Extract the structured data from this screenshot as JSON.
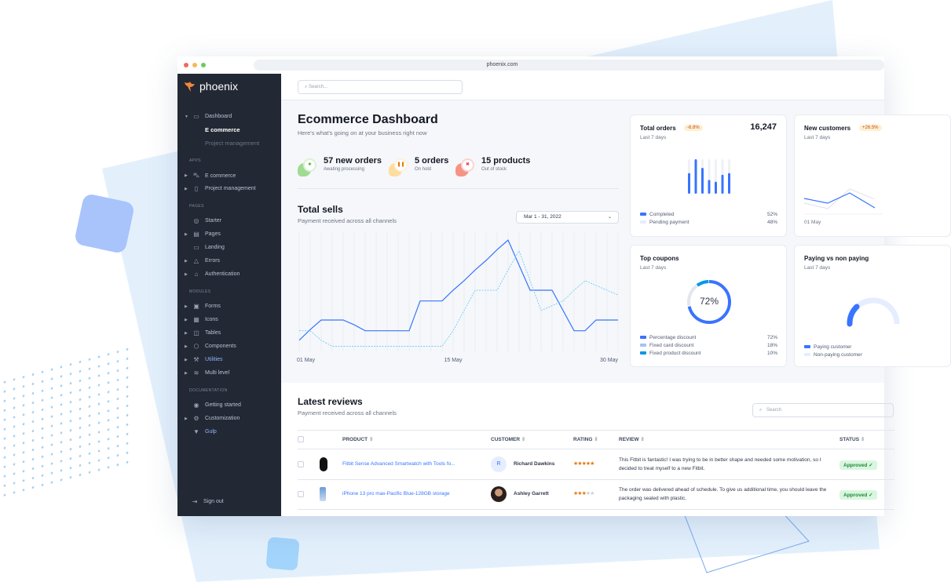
{
  "browser": {
    "url": "phoenix.com"
  },
  "brand": {
    "name": "phoenix",
    "accent": "#3874ff"
  },
  "search": {
    "placeholder": "Search..."
  },
  "sidebar": [
    {
      "type": "item",
      "label": "Dashboard",
      "icon": "monitor-icon",
      "caret": "down"
    },
    {
      "type": "sub",
      "label": "E commerce",
      "active": true
    },
    {
      "type": "sub",
      "label": "Project management"
    },
    {
      "type": "section",
      "label": "APPS"
    },
    {
      "type": "item",
      "label": "E commerce",
      "icon": "cart-icon",
      "caret": "right"
    },
    {
      "type": "item",
      "label": "Project management",
      "icon": "clipboard-icon",
      "caret": "right"
    },
    {
      "type": "section",
      "label": "PAGES"
    },
    {
      "type": "item",
      "label": "Starter",
      "icon": "compass-icon"
    },
    {
      "type": "item",
      "label": "Pages",
      "icon": "layout-icon",
      "caret": "right"
    },
    {
      "type": "item",
      "label": "Landing",
      "icon": "screen-icon"
    },
    {
      "type": "item",
      "label": "Errors",
      "icon": "alert-icon",
      "caret": "right"
    },
    {
      "type": "item",
      "label": "Authentication",
      "icon": "lock-icon",
      "caret": "right"
    },
    {
      "type": "section",
      "label": "MODULES"
    },
    {
      "type": "item",
      "label": "Forms",
      "icon": "file-icon",
      "caret": "right"
    },
    {
      "type": "item",
      "label": "Icons",
      "icon": "grid-icon",
      "caret": "right"
    },
    {
      "type": "item",
      "label": "Tables",
      "icon": "table-icon",
      "caret": "right"
    },
    {
      "type": "item",
      "label": "Components",
      "icon": "package-icon",
      "caret": "right"
    },
    {
      "type": "item",
      "label": "Utilities",
      "icon": "tool-icon",
      "caret": "right",
      "blue": true
    },
    {
      "type": "item",
      "label": "Multi level",
      "icon": "layers-icon",
      "caret": "right"
    },
    {
      "type": "section",
      "label": "DOCUMENTATION"
    },
    {
      "type": "item",
      "label": "Getting started",
      "icon": "life-buoy-icon"
    },
    {
      "type": "item",
      "label": "Customization",
      "icon": "settings-icon",
      "caret": "right"
    },
    {
      "type": "item",
      "label": "Gulp",
      "icon": "gulp-icon",
      "blue": true
    }
  ],
  "signout": "Sign out",
  "header": {
    "title": "Ecommerce Dashboard",
    "subtitle": "Here's what's going on at your business right now"
  },
  "stats": [
    {
      "value": "57 new orders",
      "label": "Awating processing",
      "icon": "star-icon",
      "color": "#25b003",
      "bg": "#90d67f"
    },
    {
      "value": "5 orders",
      "label": "On hold",
      "icon": "pause-icon",
      "color": "#e5780b",
      "bg": "#ffd88e"
    },
    {
      "value": "15 products",
      "label": "Out of stock",
      "icon": "x-icon",
      "color": "#e63757",
      "bg": "#f48270"
    }
  ],
  "total_sells": {
    "title": "Total sells",
    "subtitle": "Payment received across all channels",
    "date_range": "Mar 1 - 31, 2022",
    "x_ticks": [
      "01 May",
      "15 May",
      "30 May"
    ]
  },
  "chart_data": [
    {
      "type": "line",
      "title": "Total sells",
      "x": [
        1,
        2,
        3,
        4,
        5,
        6,
        7,
        8,
        9,
        10,
        11,
        12,
        13,
        14,
        15,
        16,
        17,
        18,
        19,
        20,
        21,
        22,
        23,
        24,
        25,
        26,
        27,
        28,
        29,
        30
      ],
      "ylim": [
        0,
        100
      ],
      "series": [
        {
          "style": "solid",
          "color": "#3874ff",
          "values": [
            8,
            17,
            25,
            25,
            25,
            21,
            16,
            16,
            16,
            16,
            16,
            41,
            41,
            41,
            50,
            58,
            67,
            75,
            84,
            92,
            71,
            50,
            50,
            50,
            33,
            16,
            16,
            25,
            25,
            25
          ]
        },
        {
          "style": "dashed",
          "color": "#60c6ff",
          "values": [
            16,
            16,
            8,
            3,
            3,
            3,
            3,
            3,
            3,
            3,
            3,
            3,
            3,
            3,
            16,
            33,
            50,
            50,
            50,
            67,
            83,
            58,
            33,
            37,
            41,
            50,
            58,
            54,
            50,
            46
          ]
        }
      ],
      "grid": "vertical",
      "x_tick_labels": [
        "01 May",
        "15 May",
        "30 May"
      ]
    },
    {
      "type": "bar",
      "title": "Total orders",
      "values": [
        0.6,
        1.0,
        0.75,
        0.4,
        0.35,
        0.55,
        0.6
      ],
      "ylim": [
        0,
        1
      ]
    },
    {
      "type": "donut",
      "title": "Top coupons",
      "values": [
        72,
        18,
        10
      ]
    }
  ],
  "cards": {
    "total_orders": {
      "title": "Total orders",
      "badge": "-6.8%",
      "value": "16,247",
      "period": "Last 7 days",
      "legend": [
        {
          "label": "Completed",
          "value": "52%",
          "color": "#3874ff"
        },
        {
          "label": "Pending payment",
          "value": "48%",
          "color": "#e5edff"
        }
      ]
    },
    "new_customers": {
      "title": "New customers",
      "badge": "+26.5%",
      "period": "Last 7 days",
      "x_tick": "01 May"
    },
    "top_coupons": {
      "title": "Top coupons",
      "period": "Last 7 days",
      "center": "72%",
      "legend": [
        {
          "label": "Percentage discount",
          "value": "72%",
          "color": "#3874ff"
        },
        {
          "label": "Fixed card discount",
          "value": "18%",
          "color": "#a6c1fb"
        },
        {
          "label": "Fixed product discount",
          "value": "10%",
          "color": "#0097eb"
        }
      ]
    },
    "paying": {
      "title": "Paying vs non paying",
      "period": "Last 7 days",
      "paying_fraction": 0.3,
      "legend": [
        {
          "label": "Paying customer",
          "color": "#3874ff"
        },
        {
          "label": "Non-paying customer",
          "color": "#e5edff"
        }
      ]
    }
  },
  "reviews": {
    "title": "Latest reviews",
    "subtitle": "Payment received across all channels",
    "search_placeholder": "Search",
    "columns": [
      "PRODUCT",
      "CUSTOMER",
      "RATING",
      "REVIEW",
      "STATUS"
    ],
    "rows": [
      {
        "product": "Fitbit Sense Advanced Smartwatch with Tools fo...",
        "customer": "Richard Dawkins",
        "initial": "R",
        "rating": 5,
        "review": "This Fitbit is fantastic! I was trying to be in better shape and needed some motivation, so I decided to treat myself to a new Fitbit.",
        "status": "Approved"
      },
      {
        "product": "iPhone 13 pro max-Pacific Blue-128GB storage",
        "customer": "Ashley Garrett",
        "initial": "",
        "rating": 3,
        "review": "The order was delivered ahead of schedule. To give us additional time, you should leave the packaging sealed with plastic.",
        "status": "Approved"
      }
    ]
  }
}
